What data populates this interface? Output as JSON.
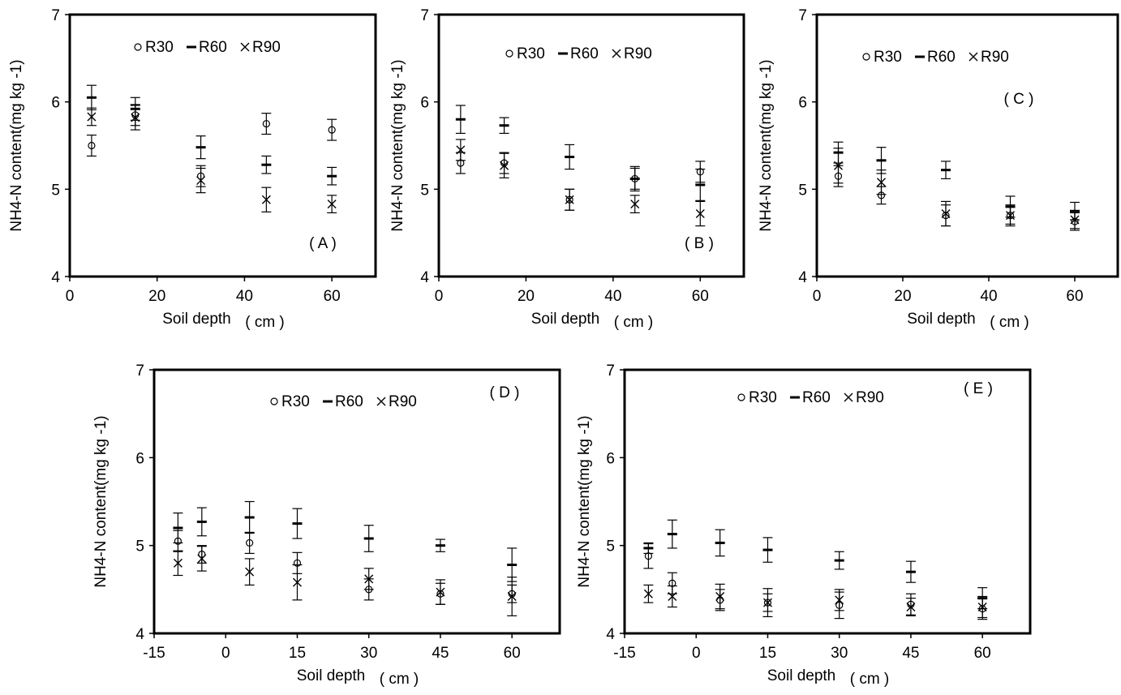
{
  "chart_data": [
    {
      "type": "scatter",
      "panel_label": "( A )",
      "xlabel": "Soil depth",
      "xlabel_unit": "( cm )",
      "ylabel": "NH4-N content(mg kg -1)",
      "xlim": [
        0,
        70
      ],
      "ylim": [
        4,
        7
      ],
      "xticks": [
        0,
        20,
        40,
        60
      ],
      "yticks": [
        4,
        5,
        6,
        7
      ],
      "grid": false,
      "legend": "top-center",
      "series": [
        {
          "name": "R30",
          "marker": "circle",
          "x": [
            5,
            15,
            30,
            45,
            60
          ],
          "y": [
            5.5,
            5.85,
            5.15,
            5.75,
            5.68
          ],
          "err": [
            0.12,
            0.12,
            0.12,
            0.12,
            0.12
          ]
        },
        {
          "name": "R60",
          "marker": "dash",
          "x": [
            5,
            15,
            30,
            45,
            60
          ],
          "y": [
            6.05,
            5.92,
            5.48,
            5.28,
            5.15
          ],
          "err": [
            0.14,
            0.13,
            0.13,
            0.1,
            0.1
          ]
        },
        {
          "name": "R90",
          "marker": "x",
          "x": [
            5,
            15,
            30,
            45,
            60
          ],
          "y": [
            5.83,
            5.82,
            5.1,
            4.88,
            4.83
          ],
          "err": [
            0.1,
            0.14,
            0.14,
            0.14,
            0.1
          ]
        }
      ]
    },
    {
      "type": "scatter",
      "panel_label": "( B )",
      "xlabel": "Soil depth",
      "xlabel_unit": "( cm )",
      "ylabel": "NH4-N content(mg kg -1)",
      "xlim": [
        0,
        70
      ],
      "ylim": [
        4,
        7
      ],
      "xticks": [
        0,
        20,
        40,
        60
      ],
      "yticks": [
        4,
        5,
        6,
        7
      ],
      "grid": false,
      "legend": "top-center",
      "series": [
        {
          "name": "R30",
          "marker": "circle",
          "x": [
            5,
            15,
            30,
            45,
            60
          ],
          "y": [
            5.3,
            5.3,
            4.88,
            5.12,
            5.2
          ],
          "err": [
            0.12,
            0.12,
            0.12,
            0.12,
            0.12
          ]
        },
        {
          "name": "R60",
          "marker": "dash",
          "x": [
            5,
            15,
            30,
            45,
            60
          ],
          "y": [
            5.8,
            5.73,
            5.37,
            5.12,
            5.05
          ],
          "err": [
            0.16,
            0.09,
            0.14,
            0.14,
            0.18
          ]
        },
        {
          "name": "R90",
          "marker": "x",
          "x": [
            5,
            15,
            30,
            45,
            60
          ],
          "y": [
            5.45,
            5.27,
            4.88,
            4.83,
            4.72
          ],
          "err": [
            0.12,
            0.14,
            0.12,
            0.1,
            0.14
          ]
        }
      ]
    },
    {
      "type": "scatter",
      "panel_label": "( C )",
      "xlabel": "Soil depth",
      "xlabel_unit": "( cm )",
      "ylabel": "NH4-N content(mg kg -1)",
      "xlim": [
        0,
        70
      ],
      "ylim": [
        4,
        7
      ],
      "xticks": [
        0,
        20,
        40,
        60
      ],
      "yticks": [
        4,
        5,
        6,
        7
      ],
      "grid": false,
      "legend": "top-center",
      "series": [
        {
          "name": "R30",
          "marker": "circle",
          "x": [
            5,
            15,
            30,
            45,
            60
          ],
          "y": [
            5.15,
            4.93,
            4.7,
            4.7,
            4.63
          ],
          "err": [
            0.12,
            0.1,
            0.12,
            0.1,
            0.1
          ]
        },
        {
          "name": "R60",
          "marker": "dash",
          "x": [
            5,
            15,
            30,
            45,
            60
          ],
          "y": [
            5.42,
            5.33,
            5.22,
            4.8,
            4.75
          ],
          "err": [
            0.12,
            0.15,
            0.1,
            0.12,
            0.1
          ]
        },
        {
          "name": "R90",
          "marker": "x",
          "x": [
            5,
            15,
            30,
            45,
            60
          ],
          "y": [
            5.27,
            5.08,
            4.72,
            4.7,
            4.65
          ],
          "err": [
            0.2,
            0.14,
            0.14,
            0.12,
            0.1
          ]
        }
      ]
    },
    {
      "type": "scatter",
      "panel_label": "( D )",
      "xlabel": "Soil depth",
      "xlabel_unit": "( cm )",
      "ylabel": "NH4-N content(mg kg -1)",
      "xlim": [
        -15,
        70
      ],
      "ylim": [
        4,
        7
      ],
      "xticks": [
        -15,
        0,
        15,
        30,
        45,
        60
      ],
      "yticks": [
        4,
        5,
        6,
        7
      ],
      "grid": false,
      "legend": "top-center",
      "series": [
        {
          "name": "R30",
          "marker": "circle",
          "x": [
            -10,
            -5,
            5,
            15,
            30,
            45,
            60
          ],
          "y": [
            5.05,
            4.9,
            5.03,
            4.8,
            4.5,
            4.45,
            4.45
          ],
          "err": [
            0.12,
            0.1,
            0.12,
            0.12,
            0.12,
            0.12,
            0.1
          ]
        },
        {
          "name": "R60",
          "marker": "dash",
          "x": [
            -10,
            -5,
            5,
            15,
            30,
            45,
            60
          ],
          "y": [
            5.2,
            5.27,
            5.32,
            5.25,
            5.08,
            5.0,
            4.78
          ],
          "err": [
            0.17,
            0.16,
            0.18,
            0.17,
            0.15,
            0.07,
            0.19
          ]
        },
        {
          "name": "R90",
          "marker": "x",
          "x": [
            -10,
            -5,
            5,
            15,
            30,
            45,
            60
          ],
          "y": [
            4.8,
            4.85,
            4.7,
            4.58,
            4.62,
            4.47,
            4.42
          ],
          "err": [
            0.14,
            0.14,
            0.15,
            0.2,
            0.12,
            0.14,
            0.22
          ]
        }
      ]
    },
    {
      "type": "scatter",
      "panel_label": "( E )",
      "xlabel": "Soil depth",
      "xlabel_unit": "( cm )",
      "ylabel": "NH4-N content(mg kg -1)",
      "xlim": [
        -15,
        70
      ],
      "ylim": [
        4,
        7
      ],
      "xticks": [
        -15,
        0,
        15,
        30,
        45,
        60
      ],
      "yticks": [
        4,
        5,
        6,
        7
      ],
      "grid": false,
      "legend": "top-center",
      "series": [
        {
          "name": "R30",
          "marker": "circle",
          "x": [
            -10,
            -5,
            5,
            15,
            30,
            45,
            60
          ],
          "y": [
            4.88,
            4.57,
            4.38,
            4.35,
            4.32,
            4.33,
            4.28
          ],
          "err": [
            0.14,
            0.12,
            0.12,
            0.1,
            0.15,
            0.12,
            0.12
          ]
        },
        {
          "name": "R60",
          "marker": "dash",
          "x": [
            -10,
            -5,
            5,
            15,
            30,
            45,
            60
          ],
          "y": [
            4.97,
            5.13,
            5.03,
            4.95,
            4.83,
            4.7,
            4.4
          ],
          "err": [
            0.06,
            0.16,
            0.15,
            0.14,
            0.1,
            0.12,
            0.12
          ]
        },
        {
          "name": "R90",
          "marker": "x",
          "x": [
            -10,
            -5,
            5,
            15,
            30,
            45,
            60
          ],
          "y": [
            4.45,
            4.42,
            4.42,
            4.35,
            4.38,
            4.3,
            4.3
          ],
          "err": [
            0.1,
            0.12,
            0.14,
            0.16,
            0.12,
            0.1,
            0.12
          ]
        }
      ]
    }
  ]
}
